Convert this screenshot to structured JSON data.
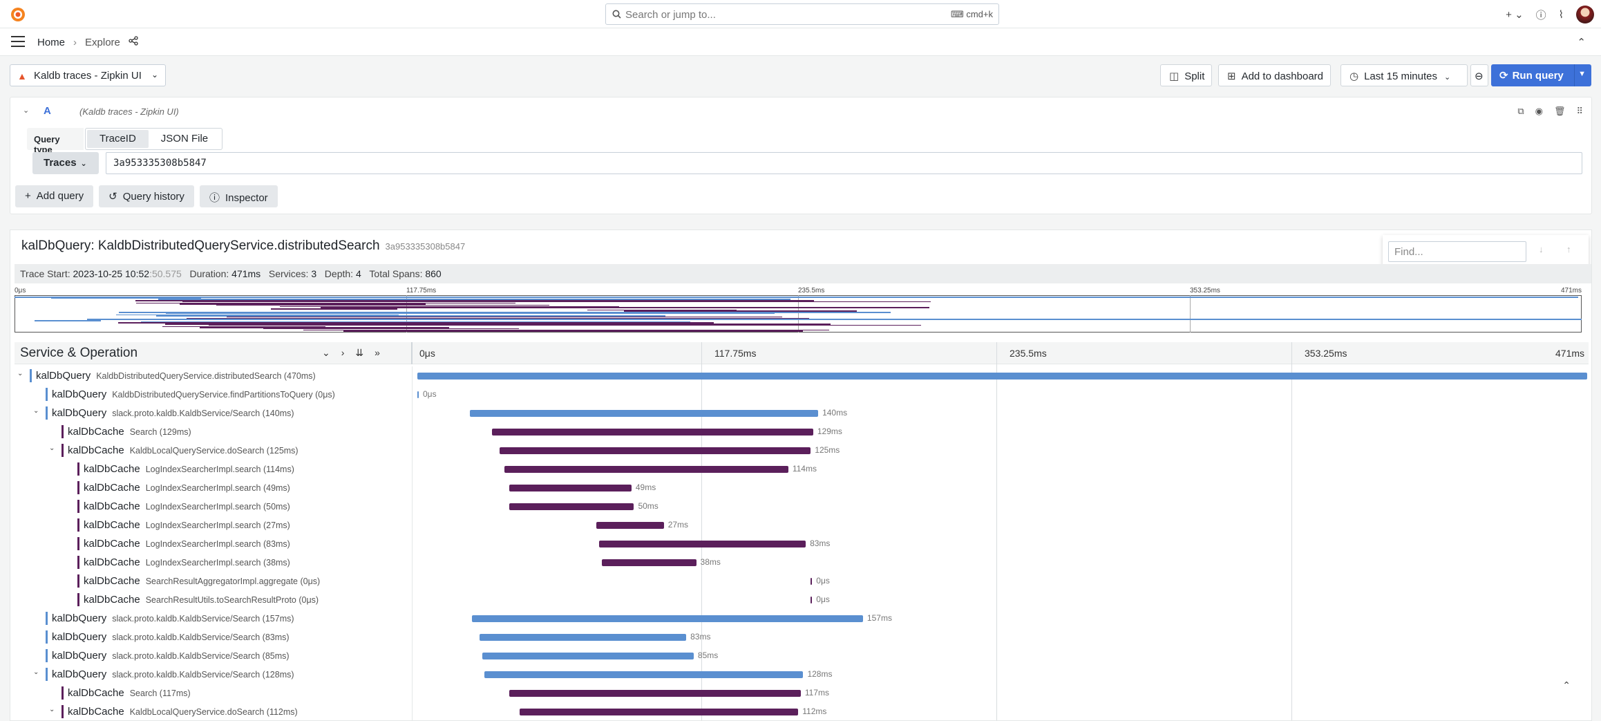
{
  "topbar": {
    "search_placeholder": "Search or jump to...",
    "search_shortcut": "cmd+k",
    "plus_label": "+"
  },
  "nav": {
    "home": "Home",
    "explore": "Explore"
  },
  "toolbar": {
    "datasource": "Kaldb traces - Zipkin UI",
    "split": "Split",
    "add_to_dashboard": "Add to dashboard",
    "time_range": "Last 15 minutes",
    "run_query": "Run query"
  },
  "query": {
    "ref_id": "A",
    "datasource_name": "(Kaldb traces - Zipkin UI)",
    "query_type_label": "Query type",
    "query_type_options": [
      "TraceID",
      "JSON File"
    ],
    "query_type_selected": "TraceID",
    "traces_label": "Traces",
    "trace_id_value": "3a953335308b5847"
  },
  "query_buttons": {
    "add_query": "Add query",
    "query_history": "Query history",
    "inspector": "Inspector"
  },
  "trace": {
    "title": "kalDbQuery: KaldbDistributedQueryService.distributedSearch",
    "trace_id": "3a953335308b5847",
    "find_placeholder": "Find...",
    "meta": {
      "start_label": "Trace Start:",
      "start_date": "2023-10-25 10:52",
      "start_ms": ":50.575",
      "duration_label": "Duration:",
      "duration": "471ms",
      "services_label": "Services:",
      "services": "3",
      "depth_label": "Depth:",
      "depth": "4",
      "total_spans_label": "Total Spans:",
      "total_spans": "860"
    },
    "ticks": [
      "0μs",
      "117.75ms",
      "235.5ms",
      "353.25ms",
      "471ms"
    ],
    "header_label": "Service & Operation",
    "total_ms": 471
  },
  "colors": {
    "kalDbQuery": "#5a8fd0",
    "kalDbCache": "#5b1f5b",
    "accent": "#3d71d9"
  },
  "spans": [
    {
      "depth": 0,
      "toggle": "v",
      "service": "kalDbQuery",
      "op": "KaldbDistributedQueryService.distributedSearch (470ms)",
      "start": 0,
      "dur": 470,
      "label": ""
    },
    {
      "depth": 1,
      "toggle": "",
      "service": "kalDbQuery",
      "op": "KaldbDistributedQueryService.findPartitionsToQuery (0μs)",
      "start": 0,
      "dur": 0,
      "label": "0μs"
    },
    {
      "depth": 1,
      "toggle": "v",
      "service": "kalDbQuery",
      "op": "slack.proto.kaldb.KaldbService/Search (140ms)",
      "start": 21,
      "dur": 140,
      "label": "140ms"
    },
    {
      "depth": 2,
      "toggle": "",
      "service": "kalDbCache",
      "op": "Search (129ms)",
      "start": 30,
      "dur": 129,
      "label": "129ms"
    },
    {
      "depth": 2,
      "toggle": "v",
      "service": "kalDbCache",
      "op": "KaldbLocalQueryService.doSearch (125ms)",
      "start": 33,
      "dur": 125,
      "label": "125ms"
    },
    {
      "depth": 3,
      "toggle": "",
      "service": "kalDbCache",
      "op": "LogIndexSearcherImpl.search (114ms)",
      "start": 35,
      "dur": 114,
      "label": "114ms"
    },
    {
      "depth": 3,
      "toggle": "",
      "service": "kalDbCache",
      "op": "LogIndexSearcherImpl.search (49ms)",
      "start": 37,
      "dur": 49,
      "label": "49ms"
    },
    {
      "depth": 3,
      "toggle": "",
      "service": "kalDbCache",
      "op": "LogIndexSearcherImpl.search (50ms)",
      "start": 37,
      "dur": 50,
      "label": "50ms"
    },
    {
      "depth": 3,
      "toggle": "",
      "service": "kalDbCache",
      "op": "LogIndexSearcherImpl.search (27ms)",
      "start": 72,
      "dur": 27,
      "label": "27ms"
    },
    {
      "depth": 3,
      "toggle": "",
      "service": "kalDbCache",
      "op": "LogIndexSearcherImpl.search (83ms)",
      "start": 73,
      "dur": 83,
      "label": "83ms"
    },
    {
      "depth": 3,
      "toggle": "",
      "service": "kalDbCache",
      "op": "LogIndexSearcherImpl.search (38ms)",
      "start": 74,
      "dur": 38,
      "label": "38ms"
    },
    {
      "depth": 3,
      "toggle": "",
      "service": "kalDbCache",
      "op": "SearchResultAggregatorImpl.aggregate (0μs)",
      "start": 158,
      "dur": 0,
      "label": "0μs"
    },
    {
      "depth": 3,
      "toggle": "",
      "service": "kalDbCache",
      "op": "SearchResultUtils.toSearchResultProto (0μs)",
      "start": 158,
      "dur": 0,
      "label": "0μs"
    },
    {
      "depth": 1,
      "toggle": "",
      "service": "kalDbQuery",
      "op": "slack.proto.kaldb.KaldbService/Search (157ms)",
      "start": 22,
      "dur": 157,
      "label": "157ms"
    },
    {
      "depth": 1,
      "toggle": "",
      "service": "kalDbQuery",
      "op": "slack.proto.kaldb.KaldbService/Search (83ms)",
      "start": 25,
      "dur": 83,
      "label": "83ms"
    },
    {
      "depth": 1,
      "toggle": "",
      "service": "kalDbQuery",
      "op": "slack.proto.kaldb.KaldbService/Search (85ms)",
      "start": 26,
      "dur": 85,
      "label": "85ms"
    },
    {
      "depth": 1,
      "toggle": "v",
      "service": "kalDbQuery",
      "op": "slack.proto.kaldb.KaldbService/Search (128ms)",
      "start": 27,
      "dur": 128,
      "label": "128ms"
    },
    {
      "depth": 2,
      "toggle": "",
      "service": "kalDbCache",
      "op": "Search (117ms)",
      "start": 37,
      "dur": 117,
      "label": "117ms"
    },
    {
      "depth": 2,
      "toggle": "v",
      "service": "kalDbCache",
      "op": "KaldbLocalQueryService.doSearch (112ms)",
      "start": 41,
      "dur": 112,
      "label": "112ms"
    }
  ]
}
